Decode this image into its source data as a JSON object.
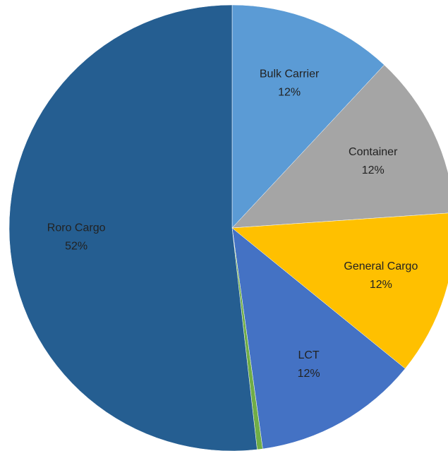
{
  "chart_data": {
    "type": "pie",
    "categories": [
      "Bulk Carrier",
      "Container",
      "General Cargo",
      "LCT",
      null,
      "Roro Cargo"
    ],
    "values": [
      12,
      12,
      12,
      12,
      0.4,
      52
    ],
    "value_labels": [
      "12%",
      "12%",
      "12%",
      "12%",
      null,
      "52%"
    ],
    "colors": [
      "#5b9bd5",
      "#a5a5a5",
      "#ffc000",
      "#4472c4",
      "#70ad47",
      "#255e91"
    ]
  }
}
